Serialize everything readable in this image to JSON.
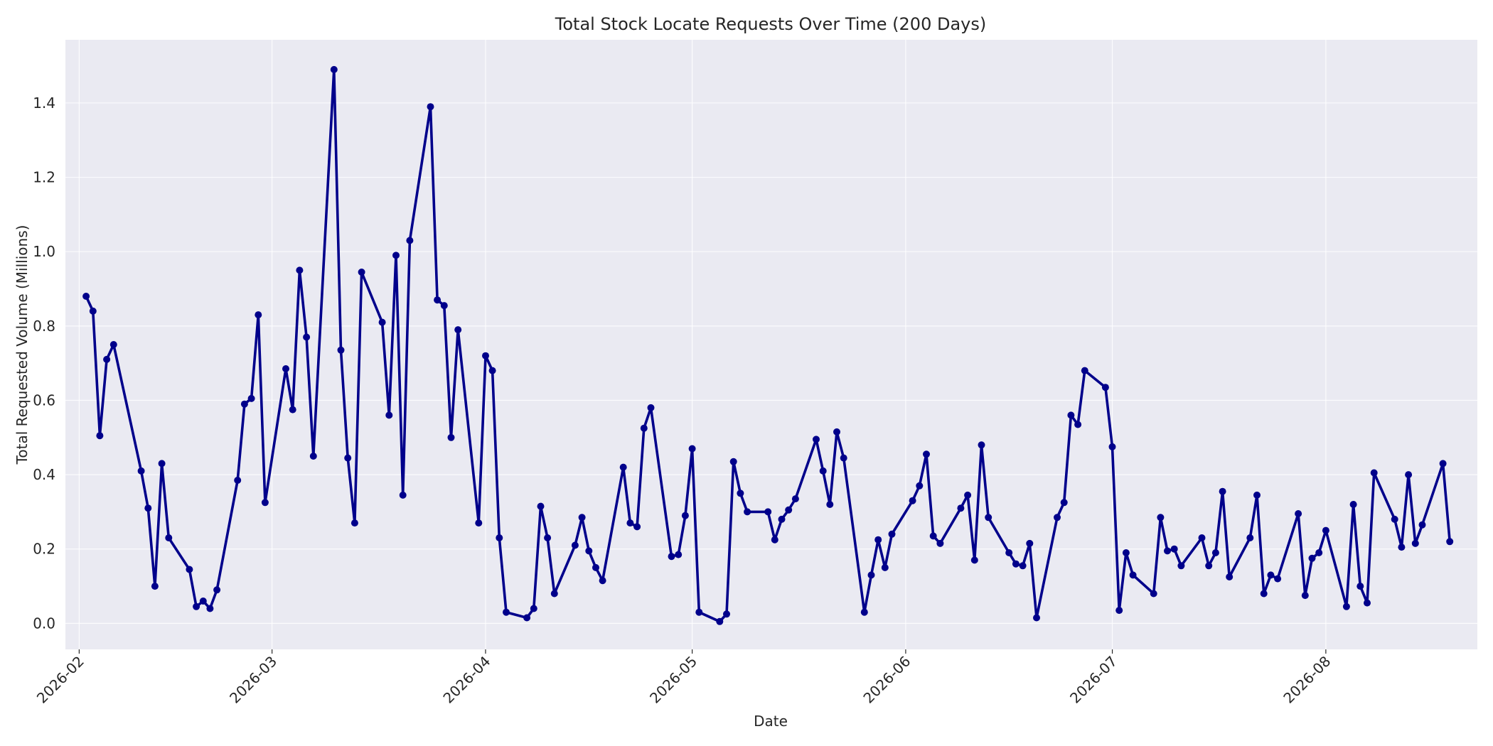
{
  "chart_data": {
    "type": "line",
    "title": "Total Stock Locate Requests Over Time (200 Days)",
    "xlabel": "Date",
    "ylabel": "Total Requested Volume (Millions)",
    "xlim": [
      "2026-01-30",
      "2026-08-23"
    ],
    "ylim": [
      -0.07,
      1.57
    ],
    "grid": true,
    "colors": {
      "background": "#eaeaf2",
      "series": "#00008b",
      "grid": "#ffffff"
    },
    "x_ticks": [
      {
        "date": "2026-02-01",
        "label": "2026-02"
      },
      {
        "date": "2026-03-01",
        "label": "2026-03"
      },
      {
        "date": "2026-04-01",
        "label": "2026-04"
      },
      {
        "date": "2026-05-01",
        "label": "2026-05"
      },
      {
        "date": "2026-06-01",
        "label": "2026-06"
      },
      {
        "date": "2026-07-01",
        "label": "2026-07"
      },
      {
        "date": "2026-08-01",
        "label": "2026-08"
      }
    ],
    "y_ticks": [
      {
        "value": 0.0,
        "label": "0.0"
      },
      {
        "value": 0.2,
        "label": "0.2"
      },
      {
        "value": 0.4,
        "label": "0.4"
      },
      {
        "value": 0.6,
        "label": "0.6"
      },
      {
        "value": 0.8,
        "label": "0.8"
      },
      {
        "value": 1.0,
        "label": "1.0"
      },
      {
        "value": 1.2,
        "label": "1.2"
      },
      {
        "value": 1.4,
        "label": "1.4"
      }
    ],
    "series": [
      {
        "points": [
          [
            "2026-02-02",
            0.88
          ],
          [
            "2026-02-03",
            0.84
          ],
          [
            "2026-02-04",
            0.505
          ],
          [
            "2026-02-05",
            0.71
          ],
          [
            "2026-02-06",
            0.75
          ],
          [
            "2026-02-10",
            0.41
          ],
          [
            "2026-02-11",
            0.31
          ],
          [
            "2026-02-12",
            0.1
          ],
          [
            "2026-02-13",
            0.43
          ],
          [
            "2026-02-14",
            0.23
          ],
          [
            "2026-02-17",
            0.145
          ],
          [
            "2026-02-18",
            0.045
          ],
          [
            "2026-02-19",
            0.06
          ],
          [
            "2026-02-20",
            0.04
          ],
          [
            "2026-02-21",
            0.09
          ],
          [
            "2026-02-24",
            0.385
          ],
          [
            "2026-02-25",
            0.59
          ],
          [
            "2026-02-26",
            0.605
          ],
          [
            "2026-02-27",
            0.83
          ],
          [
            "2026-02-28",
            0.325
          ],
          [
            "2026-03-03",
            0.685
          ],
          [
            "2026-03-04",
            0.575
          ],
          [
            "2026-03-05",
            0.95
          ],
          [
            "2026-03-06",
            0.77
          ],
          [
            "2026-03-07",
            0.45
          ],
          [
            "2026-03-10",
            1.49
          ],
          [
            "2026-03-11",
            0.735
          ],
          [
            "2026-03-12",
            0.445
          ],
          [
            "2026-03-13",
            0.27
          ],
          [
            "2026-03-14",
            0.945
          ],
          [
            "2026-03-17",
            0.81
          ],
          [
            "2026-03-18",
            0.56
          ],
          [
            "2026-03-19",
            0.99
          ],
          [
            "2026-03-20",
            0.345
          ],
          [
            "2026-03-21",
            1.03
          ],
          [
            "2026-03-24",
            1.39
          ],
          [
            "2026-03-25",
            0.87
          ],
          [
            "2026-03-26",
            0.855
          ],
          [
            "2026-03-27",
            0.5
          ],
          [
            "2026-03-28",
            0.79
          ],
          [
            "2026-03-31",
            0.27
          ],
          [
            "2026-04-01",
            0.72
          ],
          [
            "2026-04-02",
            0.68
          ],
          [
            "2026-04-03",
            0.23
          ],
          [
            "2026-04-04",
            0.03
          ],
          [
            "2026-04-07",
            0.015
          ],
          [
            "2026-04-08",
            0.04
          ],
          [
            "2026-04-09",
            0.315
          ],
          [
            "2026-04-10",
            0.23
          ],
          [
            "2026-04-11",
            0.08
          ],
          [
            "2026-04-14",
            0.21
          ],
          [
            "2026-04-15",
            0.285
          ],
          [
            "2026-04-16",
            0.195
          ],
          [
            "2026-04-17",
            0.15
          ],
          [
            "2026-04-18",
            0.115
          ],
          [
            "2026-04-21",
            0.42
          ],
          [
            "2026-04-22",
            0.27
          ],
          [
            "2026-04-23",
            0.26
          ],
          [
            "2026-04-24",
            0.525
          ],
          [
            "2026-04-25",
            0.58
          ],
          [
            "2026-04-28",
            0.18
          ],
          [
            "2026-04-29",
            0.185
          ],
          [
            "2026-04-30",
            0.29
          ],
          [
            "2026-05-01",
            0.47
          ],
          [
            "2026-05-02",
            0.03
          ],
          [
            "2026-05-05",
            0.005
          ],
          [
            "2026-05-06",
            0.025
          ],
          [
            "2026-05-07",
            0.435
          ],
          [
            "2026-05-08",
            0.35
          ],
          [
            "2026-05-09",
            0.3
          ],
          [
            "2026-05-12",
            0.3
          ],
          [
            "2026-05-13",
            0.225
          ],
          [
            "2026-05-14",
            0.28
          ],
          [
            "2026-05-15",
            0.305
          ],
          [
            "2026-05-16",
            0.335
          ],
          [
            "2026-05-19",
            0.495
          ],
          [
            "2026-05-20",
            0.41
          ],
          [
            "2026-05-21",
            0.32
          ],
          [
            "2026-05-22",
            0.515
          ],
          [
            "2026-05-23",
            0.445
          ],
          [
            "2026-05-26",
            0.03
          ],
          [
            "2026-05-27",
            0.13
          ],
          [
            "2026-05-28",
            0.225
          ],
          [
            "2026-05-29",
            0.15
          ],
          [
            "2026-05-30",
            0.24
          ],
          [
            "2026-06-02",
            0.33
          ],
          [
            "2026-06-03",
            0.37
          ],
          [
            "2026-06-04",
            0.455
          ],
          [
            "2026-06-05",
            0.235
          ],
          [
            "2026-06-06",
            0.215
          ],
          [
            "2026-06-09",
            0.31
          ],
          [
            "2026-06-10",
            0.345
          ],
          [
            "2026-06-11",
            0.17
          ],
          [
            "2026-06-12",
            0.48
          ],
          [
            "2026-06-13",
            0.285
          ],
          [
            "2026-06-16",
            0.19
          ],
          [
            "2026-06-17",
            0.16
          ],
          [
            "2026-06-18",
            0.155
          ],
          [
            "2026-06-19",
            0.215
          ],
          [
            "2026-06-20",
            0.015
          ],
          [
            "2026-06-23",
            0.285
          ],
          [
            "2026-06-24",
            0.325
          ],
          [
            "2026-06-25",
            0.56
          ],
          [
            "2026-06-26",
            0.535
          ],
          [
            "2026-06-27",
            0.68
          ],
          [
            "2026-06-30",
            0.635
          ],
          [
            "2026-07-01",
            0.475
          ],
          [
            "2026-07-02",
            0.035
          ],
          [
            "2026-07-03",
            0.19
          ],
          [
            "2026-07-04",
            0.13
          ],
          [
            "2026-07-07",
            0.08
          ],
          [
            "2026-07-08",
            0.285
          ],
          [
            "2026-07-09",
            0.195
          ],
          [
            "2026-07-10",
            0.2
          ],
          [
            "2026-07-11",
            0.155
          ],
          [
            "2026-07-14",
            0.23
          ],
          [
            "2026-07-15",
            0.155
          ],
          [
            "2026-07-16",
            0.19
          ],
          [
            "2026-07-17",
            0.355
          ],
          [
            "2026-07-18",
            0.125
          ],
          [
            "2026-07-21",
            0.23
          ],
          [
            "2026-07-22",
            0.345
          ],
          [
            "2026-07-23",
            0.08
          ],
          [
            "2026-07-24",
            0.13
          ],
          [
            "2026-07-25",
            0.12
          ],
          [
            "2026-07-28",
            0.295
          ],
          [
            "2026-07-29",
            0.075
          ],
          [
            "2026-07-30",
            0.175
          ],
          [
            "2026-07-31",
            0.19
          ],
          [
            "2026-08-01",
            0.25
          ],
          [
            "2026-08-04",
            0.045
          ],
          [
            "2026-08-05",
            0.32
          ],
          [
            "2026-08-06",
            0.1
          ],
          [
            "2026-08-07",
            0.055
          ],
          [
            "2026-08-08",
            0.405
          ],
          [
            "2026-08-11",
            0.28
          ],
          [
            "2026-08-12",
            0.205
          ],
          [
            "2026-08-13",
            0.4
          ],
          [
            "2026-08-14",
            0.215
          ],
          [
            "2026-08-15",
            0.265
          ],
          [
            "2026-08-18",
            0.43
          ],
          [
            "2026-08-19",
            0.22
          ]
        ]
      }
    ]
  }
}
